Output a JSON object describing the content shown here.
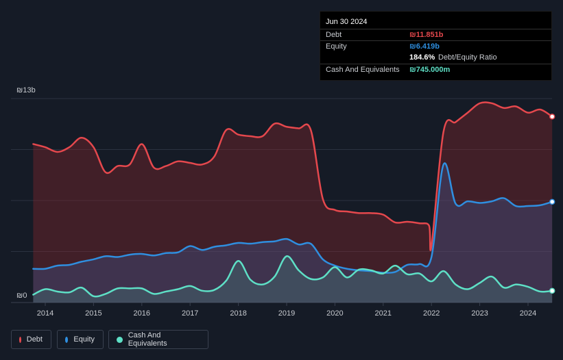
{
  "tooltip": {
    "date": "Jun 30 2024",
    "debt_label": "Debt",
    "debt_value": "₪11.851b",
    "equity_label": "Equity",
    "equity_value": "₪6.419b",
    "ratio_value": "184.6%",
    "ratio_label": "Debt/Equity Ratio",
    "cash_label": "Cash And Equivalents",
    "cash_value": "₪745.000m"
  },
  "colors": {
    "debt": "#e5484d",
    "equity": "#2f8fe0",
    "cash": "#5ee0c6",
    "background": "#151b26"
  },
  "legend": [
    {
      "label": "Debt",
      "color": "#e5484d"
    },
    {
      "label": "Equity",
      "color": "#2f8fe0"
    },
    {
      "label": "Cash And Equivalents",
      "color": "#5ee0c6"
    }
  ],
  "chart_data": {
    "type": "area",
    "title": "",
    "xlabel": "",
    "ylabel": "",
    "ylim": [
      0,
      13
    ],
    "xlim": [
      2013.7,
      2024.5
    ],
    "y_tick_labels": [
      "₪0",
      "₪13b"
    ],
    "x_tick_labels": [
      "2014",
      "2015",
      "2016",
      "2017",
      "2018",
      "2019",
      "2020",
      "2021",
      "2022",
      "2023",
      "2024"
    ],
    "series": [
      {
        "name": "Debt",
        "points": [
          [
            2013.75,
            10.1
          ],
          [
            2014.0,
            9.9
          ],
          [
            2014.25,
            9.6
          ],
          [
            2014.5,
            9.9
          ],
          [
            2014.75,
            10.5
          ],
          [
            2015.0,
            9.9
          ],
          [
            2015.25,
            8.3
          ],
          [
            2015.5,
            8.7
          ],
          [
            2015.75,
            8.8
          ],
          [
            2016.0,
            10.1
          ],
          [
            2016.25,
            8.6
          ],
          [
            2016.5,
            8.7
          ],
          [
            2016.75,
            9.0
          ],
          [
            2017.0,
            8.9
          ],
          [
            2017.25,
            8.8
          ],
          [
            2017.5,
            9.3
          ],
          [
            2017.75,
            11.0
          ],
          [
            2018.0,
            10.7
          ],
          [
            2018.25,
            10.6
          ],
          [
            2018.5,
            10.6
          ],
          [
            2018.75,
            11.4
          ],
          [
            2019.0,
            11.2
          ],
          [
            2019.25,
            11.1
          ],
          [
            2019.5,
            11.0
          ],
          [
            2019.75,
            6.6
          ],
          [
            2020.0,
            5.9
          ],
          [
            2020.25,
            5.8
          ],
          [
            2020.5,
            5.7
          ],
          [
            2020.75,
            5.7
          ],
          [
            2021.0,
            5.6
          ],
          [
            2021.25,
            5.1
          ],
          [
            2021.5,
            5.15
          ],
          [
            2021.75,
            5.05
          ],
          [
            2021.95,
            4.9
          ],
          [
            2022.0,
            3.6
          ],
          [
            2022.25,
            10.9
          ],
          [
            2022.5,
            11.5
          ],
          [
            2022.75,
            12.1
          ],
          [
            2023.0,
            12.7
          ],
          [
            2023.25,
            12.7
          ],
          [
            2023.5,
            12.4
          ],
          [
            2023.75,
            12.5
          ],
          [
            2024.0,
            12.1
          ],
          [
            2024.25,
            12.3
          ],
          [
            2024.5,
            11.85
          ]
        ]
      },
      {
        "name": "Equity",
        "points": [
          [
            2013.75,
            2.15
          ],
          [
            2014.0,
            2.15
          ],
          [
            2014.25,
            2.35
          ],
          [
            2014.5,
            2.4
          ],
          [
            2014.75,
            2.6
          ],
          [
            2015.0,
            2.75
          ],
          [
            2015.25,
            2.95
          ],
          [
            2015.5,
            2.9
          ],
          [
            2015.75,
            3.05
          ],
          [
            2016.0,
            3.1
          ],
          [
            2016.25,
            3.0
          ],
          [
            2016.5,
            3.15
          ],
          [
            2016.75,
            3.2
          ],
          [
            2017.0,
            3.6
          ],
          [
            2017.25,
            3.35
          ],
          [
            2017.5,
            3.55
          ],
          [
            2017.75,
            3.65
          ],
          [
            2018.0,
            3.8
          ],
          [
            2018.25,
            3.75
          ],
          [
            2018.5,
            3.85
          ],
          [
            2018.75,
            3.9
          ],
          [
            2019.0,
            4.05
          ],
          [
            2019.25,
            3.7
          ],
          [
            2019.5,
            3.75
          ],
          [
            2019.75,
            2.75
          ],
          [
            2020.0,
            2.35
          ],
          [
            2020.25,
            2.15
          ],
          [
            2020.5,
            2.05
          ],
          [
            2020.75,
            2.0
          ],
          [
            2021.0,
            1.9
          ],
          [
            2021.25,
            1.95
          ],
          [
            2021.5,
            2.4
          ],
          [
            2021.75,
            2.45
          ],
          [
            2022.0,
            2.9
          ],
          [
            2022.25,
            8.8
          ],
          [
            2022.5,
            6.3
          ],
          [
            2022.75,
            6.45
          ],
          [
            2023.0,
            6.35
          ],
          [
            2023.25,
            6.45
          ],
          [
            2023.5,
            6.65
          ],
          [
            2023.75,
            6.15
          ],
          [
            2024.0,
            6.15
          ],
          [
            2024.25,
            6.2
          ],
          [
            2024.5,
            6.42
          ]
        ]
      },
      {
        "name": "Cash And Equivalents",
        "points": [
          [
            2013.75,
            0.5
          ],
          [
            2014.0,
            0.85
          ],
          [
            2014.25,
            0.7
          ],
          [
            2014.5,
            0.65
          ],
          [
            2014.75,
            0.95
          ],
          [
            2015.0,
            0.4
          ],
          [
            2015.25,
            0.55
          ],
          [
            2015.5,
            0.9
          ],
          [
            2015.75,
            0.9
          ],
          [
            2016.0,
            0.9
          ],
          [
            2016.25,
            0.55
          ],
          [
            2016.5,
            0.7
          ],
          [
            2016.75,
            0.85
          ],
          [
            2017.0,
            1.05
          ],
          [
            2017.25,
            0.75
          ],
          [
            2017.5,
            0.8
          ],
          [
            2017.75,
            1.4
          ],
          [
            2018.0,
            2.65
          ],
          [
            2018.25,
            1.45
          ],
          [
            2018.5,
            1.15
          ],
          [
            2018.75,
            1.65
          ],
          [
            2019.0,
            2.95
          ],
          [
            2019.25,
            2.05
          ],
          [
            2019.5,
            1.5
          ],
          [
            2019.75,
            1.6
          ],
          [
            2020.0,
            2.25
          ],
          [
            2020.25,
            1.6
          ],
          [
            2020.5,
            2.1
          ],
          [
            2020.75,
            2.05
          ],
          [
            2021.0,
            1.85
          ],
          [
            2021.25,
            2.35
          ],
          [
            2021.5,
            1.8
          ],
          [
            2021.75,
            1.85
          ],
          [
            2022.0,
            1.35
          ],
          [
            2022.25,
            2.0
          ],
          [
            2022.5,
            1.15
          ],
          [
            2022.75,
            0.85
          ],
          [
            2023.0,
            1.25
          ],
          [
            2023.25,
            1.65
          ],
          [
            2023.5,
            0.95
          ],
          [
            2023.75,
            1.15
          ],
          [
            2024.0,
            1.0
          ],
          [
            2024.25,
            0.7
          ],
          [
            2024.5,
            0.745
          ]
        ]
      }
    ]
  }
}
